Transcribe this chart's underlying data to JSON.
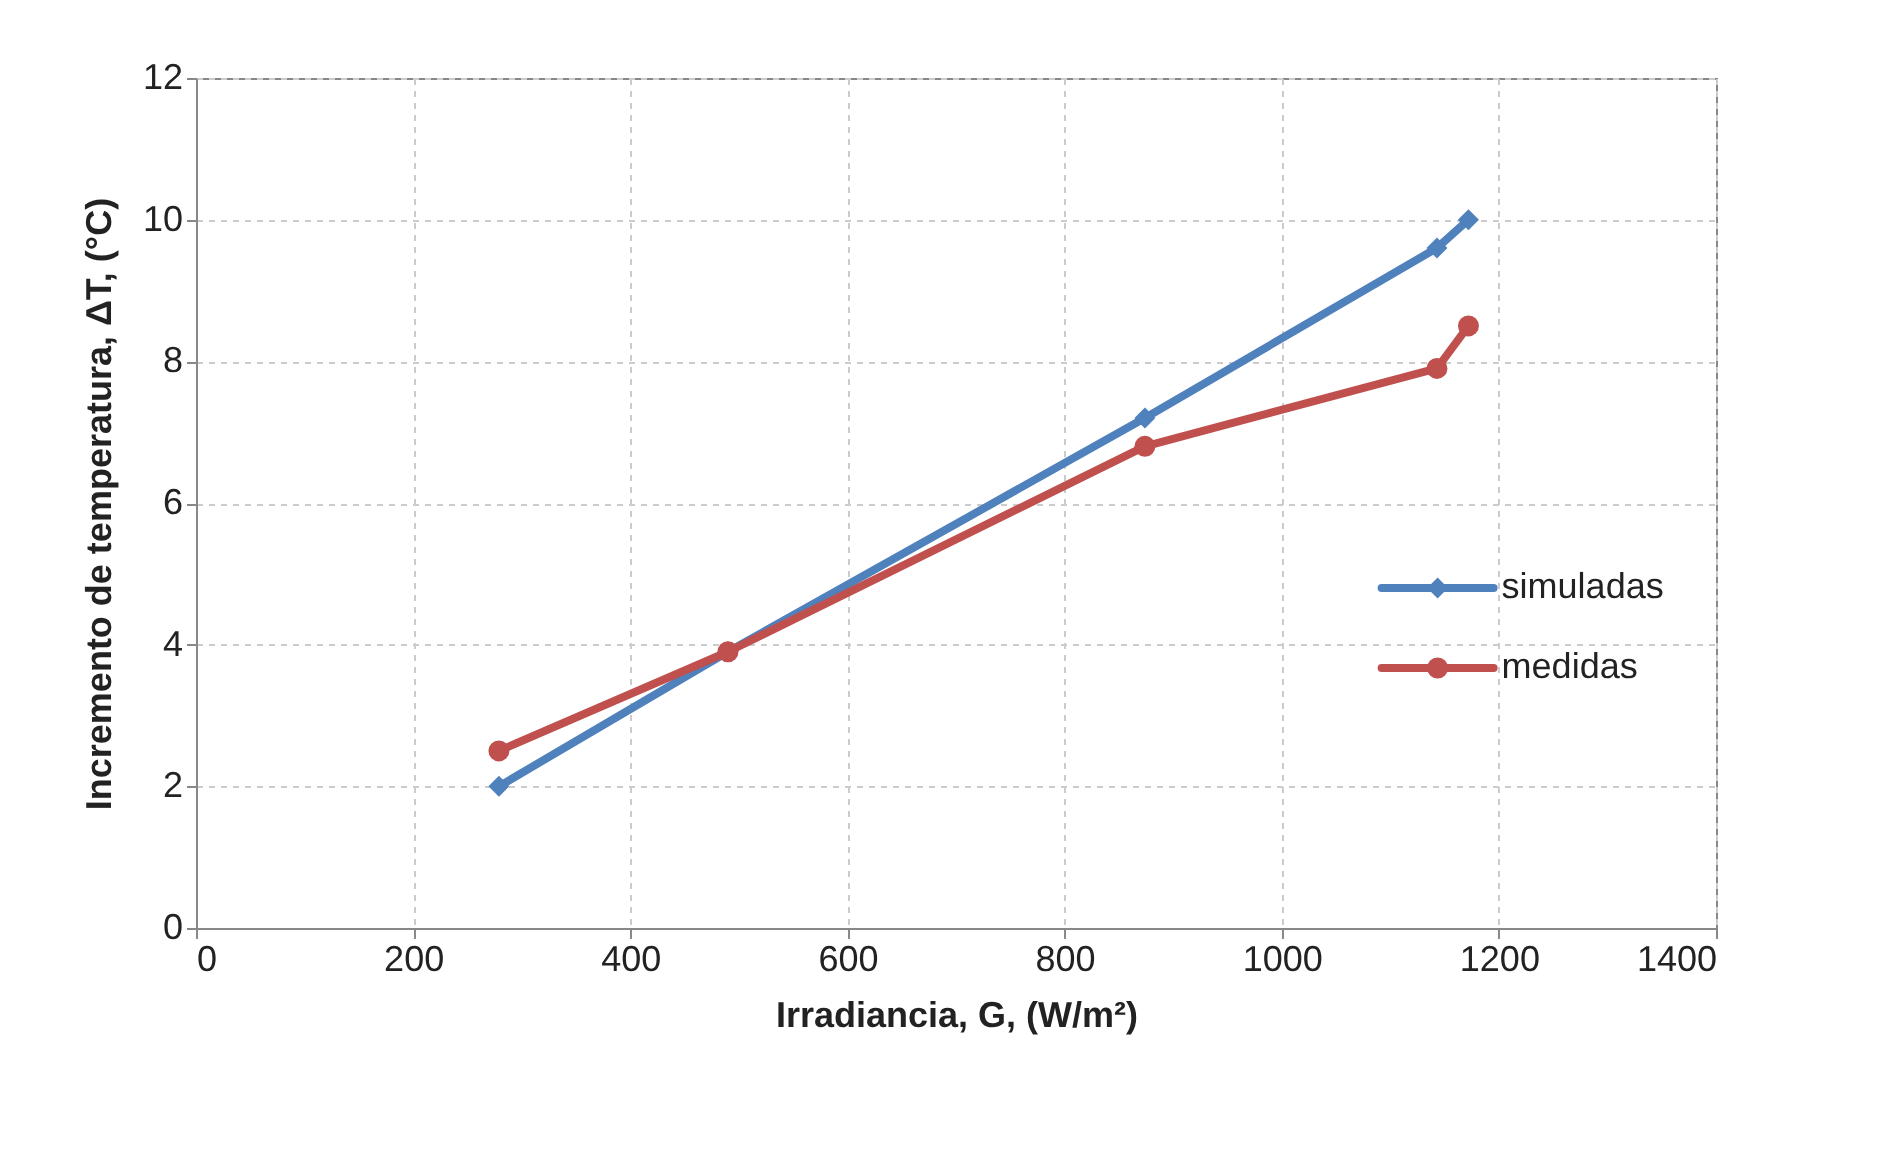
{
  "chart_data": {
    "type": "line",
    "xlabel": "Irradiancia, G, (W/m²)",
    "ylabel": "Incremento de temperatura, ΔT, (°C)",
    "x": [
      279,
      490,
      874,
      1143,
      1172
    ],
    "series": [
      {
        "name": "simuladas",
        "color": "#4f81bd",
        "values": [
          2.0,
          3.9,
          7.2,
          9.6,
          10.0
        ],
        "marker": "diamond"
      },
      {
        "name": "medidas",
        "color": "#c0504d",
        "values": [
          2.5,
          3.9,
          6.8,
          7.9,
          8.5
        ],
        "marker": "circle"
      }
    ],
    "xlim": [
      0,
      1400
    ],
    "xticks": [
      0,
      200,
      400,
      600,
      800,
      1000,
      1200,
      1400
    ],
    "ylim": [
      0,
      12
    ],
    "yticks": [
      0,
      2,
      4,
      6,
      8,
      10,
      12
    ],
    "grid": true,
    "legend": "right",
    "line_style": "solid"
  }
}
